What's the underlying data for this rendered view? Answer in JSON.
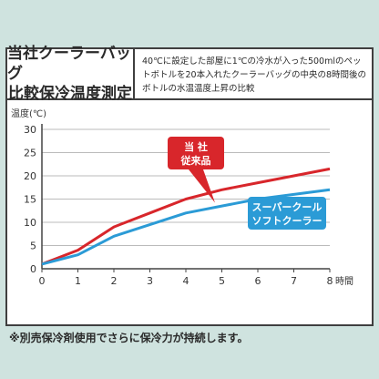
{
  "header": {
    "title_line1": "当社クーラーバッグ",
    "title_line2": "比較保冷温度測定",
    "description": "40℃に設定した部屋に1℃の冷水が入った500mlのペットボトルを20本入れたクーラーバッグの中央の8時間後のボトルの水温温度上昇の比較"
  },
  "footnote": "※別売保冷剤使用でさらに保冷力が持続します。",
  "colors": {
    "series_ours": "#d8262b",
    "series_soft": "#2b9bd6",
    "axis": "#444444",
    "grid": "#bbbbbb"
  },
  "chart_data": {
    "type": "line",
    "x": [
      0,
      1,
      2,
      3,
      4,
      5,
      6,
      7,
      8
    ],
    "x_ticks": [
      "0",
      "1",
      "2",
      "3",
      "4",
      "5",
      "6",
      "7",
      "8"
    ],
    "y_ticks": [
      "0",
      "5",
      "10",
      "15",
      "20",
      "25",
      "30"
    ],
    "xlabel": "時間",
    "ylabel": "温度(℃)",
    "xlim": [
      0,
      8
    ],
    "ylim": [
      0,
      30
    ],
    "grid": true,
    "series": [
      {
        "name": "当社従来品",
        "label_line1": "当 社",
        "label_line2": "従来品",
        "color": "#d8262b",
        "values": [
          1,
          4,
          9,
          12,
          15,
          17,
          18.5,
          20,
          21.5
        ]
      },
      {
        "name": "スーパークールソフトクーラー",
        "label_line1": "スーパークール",
        "label_line2": "ソフトクーラー",
        "color": "#2b9bd6",
        "values": [
          1,
          3,
          7,
          9.5,
          12,
          13.5,
          15,
          16,
          17
        ]
      }
    ]
  }
}
